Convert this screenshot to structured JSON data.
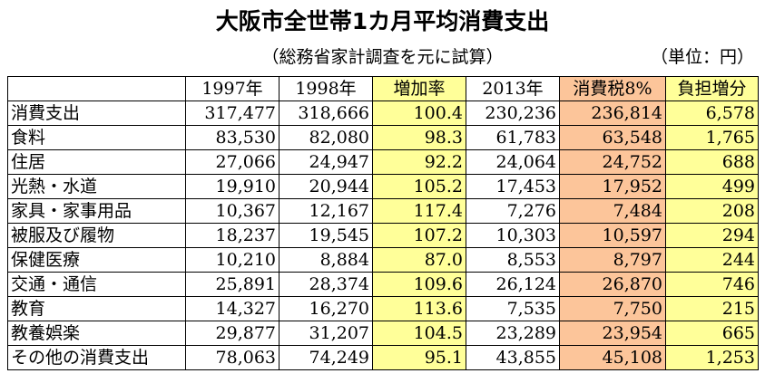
{
  "title": "大阪市全世帯1カ月平均消費支出",
  "subtitle": "（総務省家計調査を元に試算）",
  "unit": "（単位：円）",
  "colors": {
    "yellow": "#ffff99",
    "orange": "#fcc59a"
  },
  "headers": [
    "",
    "1997年",
    "1998年",
    "増加率",
    "2013年",
    "消費税8%",
    "負担増分"
  ],
  "rows": [
    [
      "消費支出",
      "317,477",
      "318,666",
      "100.4",
      "230,236",
      "236,814",
      "6,578"
    ],
    [
      "食料",
      "83,530",
      "82,080",
      "98.3",
      "61,783",
      "63,548",
      "1,765"
    ],
    [
      "住居",
      "27,066",
      "24,947",
      "92.2",
      "24,064",
      "24,752",
      "688"
    ],
    [
      "光熱・水道",
      "19,910",
      "20,944",
      "105.2",
      "17,453",
      "17,952",
      "499"
    ],
    [
      "家具・家事用品",
      "10,367",
      "12,167",
      "117.4",
      "7,276",
      "7,484",
      "208"
    ],
    [
      "被服及び履物",
      "18,237",
      "19,545",
      "107.2",
      "10,303",
      "10,597",
      "294"
    ],
    [
      "保健医療",
      "10,210",
      "8,884",
      "87.0",
      "8,553",
      "8,797",
      "244"
    ],
    [
      "交通・通信",
      "25,891",
      "28,374",
      "109.6",
      "26,124",
      "26,870",
      "746"
    ],
    [
      "教育",
      "14,327",
      "16,270",
      "113.6",
      "7,535",
      "7,750",
      "215"
    ],
    [
      "教養娯楽",
      "29,877",
      "31,207",
      "104.5",
      "23,289",
      "23,954",
      "665"
    ],
    [
      "その他の消費支出",
      "78,063",
      "74,249",
      "95.1",
      "43,855",
      "45,108",
      "1,253"
    ]
  ]
}
